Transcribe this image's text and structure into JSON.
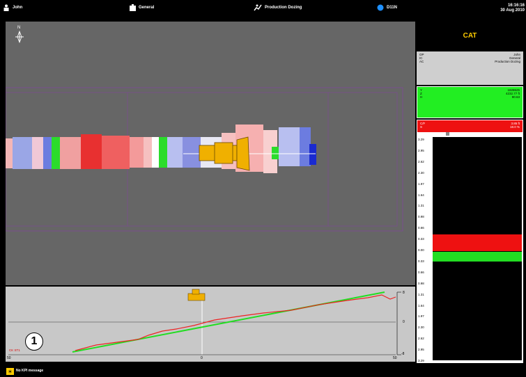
{
  "topbar": {
    "operator": "John",
    "implement": "General",
    "activity": "Production Dozing",
    "machine": "D11N",
    "time": "16:16:16",
    "date": "30 Aug 2010"
  },
  "logo": {
    "text": "CAT"
  },
  "info": {
    "rows": [
      {
        "label": "OP",
        "value": "John"
      },
      {
        "label": "IC",
        "value": "General"
      },
      {
        "label": "AC",
        "value": "Production Dozing"
      }
    ]
  },
  "coords": {
    "rows": [
      {
        "label": "Y",
        "value": "1828625",
        "unit": ""
      },
      {
        "label": "Z",
        "value": "4232.77",
        "unit": "ft"
      },
      {
        "label": "H",
        "value": "90.63",
        "unit": ""
      }
    ]
  },
  "cutfill": {
    "rows": [
      {
        "label": "C/F",
        "value": "3.85",
        "unit": "ft"
      },
      {
        "label": "S",
        "value": "18.0",
        "unit": "%"
      }
    ]
  },
  "gauge": {
    "ticks": [
      "3.29",
      "2.95",
      "2.62",
      "2.30",
      "1.97",
      "1.64",
      "1.31",
      "0.98",
      "0.66",
      "0.33",
      "0.00",
      "0.33",
      "0.66",
      "0.98",
      "1.31",
      "1.64",
      "1.97",
      "2.30",
      "2.62",
      "2.95",
      "3.29"
    ]
  },
  "profile": {
    "left_label": "50",
    "center_label": "0",
    "right_label": "50",
    "top_right": "8",
    "mid_right": "0",
    "bottom_right": "-8",
    "legend": "CK  ST1",
    "callout": "1"
  },
  "bottombar": {
    "message": "No KPI message"
  }
}
